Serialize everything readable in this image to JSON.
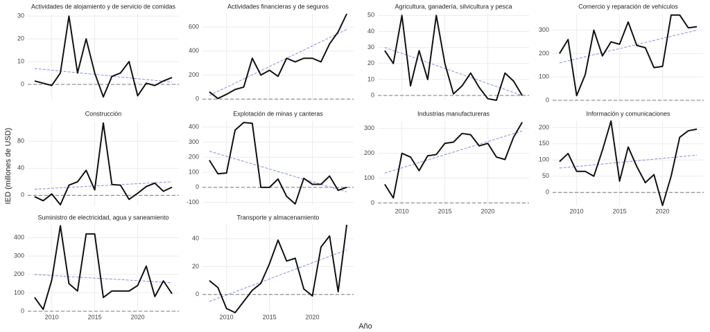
{
  "ylabel": "IED (millones de USD)",
  "xlabel": "Año",
  "chart_data": [
    {
      "type": "line",
      "title": "Actividades de alojamiento y de servicio de comidas",
      "x": [
        2008,
        2009,
        2010,
        2011,
        2012,
        2013,
        2014,
        2015,
        2016,
        2017,
        2018,
        2019,
        2020,
        2021,
        2022,
        2023,
        2024
      ],
      "values": [
        1.5,
        0.5,
        -0.5,
        5,
        30,
        5,
        20,
        5,
        -5.5,
        3.5,
        5,
        10,
        -5,
        0.5,
        -0.5,
        1.5,
        3
      ],
      "color": "#111111",
      "xlim": [
        2007.2,
        2024.8
      ],
      "xticks": [
        2010,
        2015,
        2020
      ],
      "x_tick_labels": false,
      "ylim": [
        -7,
        31
      ],
      "yticks": [
        0,
        10,
        20,
        30
      ],
      "hline": 0,
      "trend": {
        "x": [
          2008,
          2024
        ],
        "values": [
          7,
          1
        ],
        "color": "#8a8ae6"
      }
    },
    {
      "type": "line",
      "title": "Actividades financieras y de seguros",
      "x": [
        2008,
        2009,
        2010,
        2011,
        2012,
        2013,
        2014,
        2015,
        2016,
        2017,
        2018,
        2019,
        2020,
        2021,
        2022,
        2023,
        2024
      ],
      "values": [
        60,
        5,
        40,
        80,
        100,
        340,
        200,
        240,
        190,
        340,
        310,
        340,
        340,
        310,
        460,
        560,
        710
      ],
      "color": "#111111",
      "xlim": [
        2007.2,
        2024.8
      ],
      "xticks": [
        2010,
        2015,
        2020
      ],
      "x_tick_labels": false,
      "ylim": [
        -10,
        710
      ],
      "yticks": [
        0,
        200,
        400,
        600
      ],
      "hline": 0,
      "trend": {
        "x": [
          2008,
          2024
        ],
        "values": [
          30,
          580
        ],
        "color": "#8a8ae6"
      }
    },
    {
      "type": "line",
      "title": "Agricultura, ganadería, silvicultura y pesca",
      "x": [
        2008,
        2009,
        2010,
        2011,
        2012,
        2013,
        2014,
        2015,
        2016,
        2017,
        2018,
        2019,
        2020,
        2021,
        2022,
        2023,
        2024
      ],
      "values": [
        28,
        20,
        50,
        6,
        28,
        10,
        50,
        20,
        1,
        6,
        14,
        5,
        -2,
        -3,
        14,
        9,
        0
      ],
      "color": "#111111",
      "xlim": [
        2007.2,
        2024.8
      ],
      "xticks": [
        2010,
        2015,
        2020
      ],
      "x_tick_labels": false,
      "ylim": [
        -3,
        51
      ],
      "yticks": [
        0,
        10,
        20,
        30,
        40,
        50
      ],
      "hline": 0,
      "trend": {
        "x": [
          2008,
          2024
        ],
        "values": [
          30,
          0
        ],
        "color": "#8a8ae6"
      }
    },
    {
      "type": "line",
      "title": "Comercio y reparación de vehículos",
      "x": [
        2008,
        2009,
        2010,
        2011,
        2012,
        2013,
        2014,
        2015,
        2016,
        2017,
        2018,
        2019,
        2020,
        2021,
        2022,
        2023,
        2024
      ],
      "values": [
        200,
        260,
        20,
        110,
        300,
        190,
        250,
        240,
        335,
        235,
        225,
        140,
        145,
        365,
        365,
        310,
        315
      ],
      "color": "#111111",
      "xlim": [
        2007.2,
        2024.8
      ],
      "xticks": [
        2010,
        2015,
        2020
      ],
      "x_tick_labels": false,
      "ylim": [
        0,
        370
      ],
      "yticks": [
        0,
        100,
        200,
        300
      ],
      "hline": 0,
      "trend": {
        "x": [
          2008,
          2024
        ],
        "values": [
          160,
          300
        ],
        "color": "#8a8ae6"
      }
    },
    {
      "type": "line",
      "title": "Construcción",
      "x": [
        2008,
        2009,
        2010,
        2011,
        2012,
        2013,
        2014,
        2015,
        2016,
        2017,
        2018,
        2019,
        2020,
        2021,
        2022,
        2023,
        2024
      ],
      "values": [
        -2,
        -8,
        2,
        -14,
        15,
        20,
        37,
        8,
        107,
        16,
        15,
        -6,
        3,
        13,
        18,
        6,
        12
      ],
      "color": "#111111",
      "xlim": [
        2007.2,
        2024.8
      ],
      "xticks": [
        2010,
        2015,
        2020
      ],
      "x_tick_labels": false,
      "ylim": [
        -15,
        110
      ],
      "yticks": [
        0,
        40,
        80
      ],
      "hline": 0,
      "trend": {
        "x": [
          2008,
          2024
        ],
        "values": [
          9,
          20
        ],
        "color": "#8a8ae6"
      }
    },
    {
      "type": "line",
      "title": "Explotación de minas y canteras",
      "x": [
        2008,
        2009,
        2010,
        2011,
        2012,
        2013,
        2014,
        2015,
        2016,
        2017,
        2018,
        2019,
        2020,
        2021,
        2022,
        2023,
        2024
      ],
      "values": [
        180,
        90,
        95,
        380,
        430,
        425,
        0,
        0,
        55,
        -60,
        -110,
        60,
        20,
        20,
        75,
        -20,
        0
      ],
      "color": "#111111",
      "xlim": [
        2007.2,
        2024.8
      ],
      "xticks": [
        2010,
        2015,
        2020
      ],
      "x_tick_labels": false,
      "ylim": [
        -120,
        440
      ],
      "yticks": [
        -100,
        0,
        100,
        200,
        300,
        400
      ],
      "hline": 0,
      "trend": {
        "x": [
          2008,
          2024
        ],
        "values": [
          240,
          -30
        ],
        "color": "#8a8ae6"
      }
    },
    {
      "type": "line",
      "title": "Industrias manufactureras",
      "x": [
        2008,
        2009,
        2010,
        2011,
        2012,
        2013,
        2014,
        2015,
        2016,
        2017,
        2018,
        2019,
        2020,
        2021,
        2022,
        2023,
        2024
      ],
      "values": [
        75,
        20,
        200,
        185,
        130,
        190,
        195,
        240,
        245,
        280,
        275,
        230,
        240,
        185,
        175,
        265,
        325
      ],
      "color": "#111111",
      "xlim": [
        2007.2,
        2024.8
      ],
      "xticks": [
        2010,
        2015,
        2020
      ],
      "x_tick_labels": true,
      "ylim": [
        -10,
        330
      ],
      "yticks": [
        0,
        100,
        200,
        300
      ],
      "hline": 0,
      "trend": {
        "x": [
          2008,
          2024
        ],
        "values": [
          120,
          290
        ],
        "color": "#8a8ae6"
      }
    },
    {
      "type": "line",
      "title": "Información y comunicaciones",
      "x": [
        2008,
        2009,
        2010,
        2011,
        2012,
        2013,
        2014,
        2015,
        2016,
        2017,
        2018,
        2019,
        2020,
        2021,
        2022,
        2023,
        2024
      ],
      "values": [
        95,
        120,
        65,
        65,
        50,
        130,
        220,
        35,
        140,
        80,
        30,
        55,
        -40,
        50,
        170,
        190,
        195
      ],
      "color": "#111111",
      "xlim": [
        2007.2,
        2024.8
      ],
      "xticks": [
        2010,
        2015,
        2020
      ],
      "x_tick_labels": true,
      "ylim": [
        -40,
        220
      ],
      "yticks": [
        0,
        50,
        100,
        150,
        200
      ],
      "hline": 0,
      "trend": {
        "x": [
          2008,
          2024
        ],
        "values": [
          75,
          115
        ],
        "color": "#8a8ae6"
      }
    },
    {
      "type": "line",
      "title": "Suministro de electricidad, agua y saneamiento",
      "x": [
        2008,
        2009,
        2010,
        2011,
        2012,
        2013,
        2014,
        2015,
        2016,
        2017,
        2018,
        2019,
        2020,
        2021,
        2022,
        2023,
        2024
      ],
      "values": [
        75,
        10,
        170,
        465,
        150,
        110,
        420,
        420,
        75,
        110,
        110,
        110,
        140,
        245,
        80,
        165,
        95
      ],
      "color": "#111111",
      "xlim": [
        2007.2,
        2024.8
      ],
      "xticks": [
        2010,
        2015,
        2020
      ],
      "x_tick_labels": true,
      "ylim": [
        0,
        470
      ],
      "yticks": [
        0,
        100,
        200,
        300,
        400
      ],
      "hline": 0,
      "trend": {
        "x": [
          2008,
          2024
        ],
        "values": [
          200,
          155
        ],
        "color": "#8a8ae6"
      }
    },
    {
      "type": "line",
      "title": "Transporte y almacenamiento",
      "x": [
        2008,
        2009,
        2010,
        2011,
        2012,
        2013,
        2014,
        2015,
        2016,
        2017,
        2018,
        2019,
        2020,
        2021,
        2022,
        2023,
        2024
      ],
      "values": [
        10,
        5,
        -10,
        -13,
        -5,
        3,
        8,
        22,
        39,
        24,
        26,
        4,
        -1,
        34,
        42,
        2,
        50
      ],
      "color": "#111111",
      "xlim": [
        2007.2,
        2024.8
      ],
      "xticks": [
        2010,
        2015,
        2020
      ],
      "x_tick_labels": true,
      "ylim": [
        -12,
        50
      ],
      "yticks": [
        0,
        20,
        40
      ],
      "hline": 0,
      "trend": {
        "x": [
          2008,
          2024
        ],
        "values": [
          -5,
          32
        ],
        "color": "#8a8ae6"
      }
    }
  ]
}
